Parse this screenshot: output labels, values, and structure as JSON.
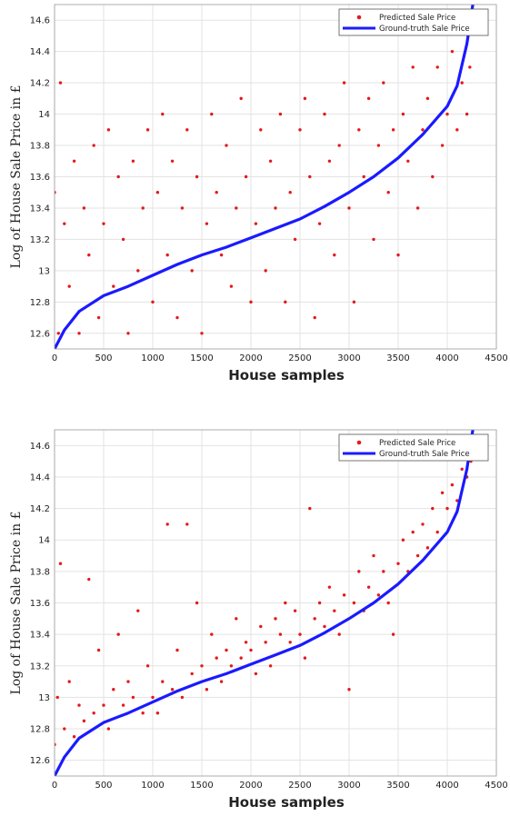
{
  "chart_data": [
    {
      "type": "scatter",
      "xlabel": "House samples",
      "ylabel": "Log of House Sale Price in £",
      "xlim": [
        0,
        4500
      ],
      "ylim": [
        12.5,
        14.7
      ],
      "xticks": [
        0,
        500,
        1000,
        1500,
        2000,
        2500,
        3000,
        3500,
        4000,
        4500
      ],
      "yticks": [
        12.6,
        12.8,
        13,
        13.2,
        13.4,
        13.6,
        13.8,
        14,
        14.2,
        14.4,
        14.6
      ],
      "grid": true,
      "legend_position": "top-right",
      "series": [
        {
          "name": "Predicted Sale Price",
          "kind": "scatter",
          "color": "#e31a1c",
          "points": [
            [
              0,
              13.5
            ],
            [
              40,
              12.6
            ],
            [
              60,
              14.2
            ],
            [
              100,
              13.3
            ],
            [
              150,
              12.9
            ],
            [
              200,
              13.7
            ],
            [
              250,
              12.6
            ],
            [
              300,
              13.4
            ],
            [
              350,
              13.1
            ],
            [
              400,
              13.8
            ],
            [
              450,
              12.7
            ],
            [
              500,
              13.3
            ],
            [
              550,
              13.9
            ],
            [
              600,
              12.9
            ],
            [
              650,
              13.6
            ],
            [
              700,
              13.2
            ],
            [
              750,
              12.6
            ],
            [
              800,
              13.7
            ],
            [
              850,
              13.0
            ],
            [
              900,
              13.4
            ],
            [
              950,
              13.9
            ],
            [
              1000,
              12.8
            ],
            [
              1050,
              13.5
            ],
            [
              1100,
              14.0
            ],
            [
              1150,
              13.1
            ],
            [
              1200,
              13.7
            ],
            [
              1250,
              12.7
            ],
            [
              1300,
              13.4
            ],
            [
              1350,
              13.9
            ],
            [
              1400,
              13.0
            ],
            [
              1450,
              13.6
            ],
            [
              1500,
              12.6
            ],
            [
              1550,
              13.3
            ],
            [
              1600,
              14.0
            ],
            [
              1650,
              13.5
            ],
            [
              1700,
              13.1
            ],
            [
              1750,
              13.8
            ],
            [
              1800,
              12.9
            ],
            [
              1850,
              13.4
            ],
            [
              1900,
              14.1
            ],
            [
              1950,
              13.6
            ],
            [
              2000,
              12.8
            ],
            [
              2050,
              13.3
            ],
            [
              2100,
              13.9
            ],
            [
              2150,
              13.0
            ],
            [
              2200,
              13.7
            ],
            [
              2250,
              13.4
            ],
            [
              2300,
              14.0
            ],
            [
              2350,
              12.8
            ],
            [
              2400,
              13.5
            ],
            [
              2450,
              13.2
            ],
            [
              2500,
              13.9
            ],
            [
              2550,
              14.1
            ],
            [
              2600,
              13.6
            ],
            [
              2650,
              12.7
            ],
            [
              2700,
              13.3
            ],
            [
              2750,
              14.0
            ],
            [
              2800,
              13.7
            ],
            [
              2850,
              13.1
            ],
            [
              2900,
              13.8
            ],
            [
              2950,
              14.2
            ],
            [
              3000,
              13.4
            ],
            [
              3050,
              12.8
            ],
            [
              3100,
              13.9
            ],
            [
              3150,
              13.6
            ],
            [
              3200,
              14.1
            ],
            [
              3250,
              13.2
            ],
            [
              3300,
              13.8
            ],
            [
              3350,
              14.2
            ],
            [
              3400,
              13.5
            ],
            [
              3450,
              13.9
            ],
            [
              3500,
              13.1
            ],
            [
              3550,
              14.0
            ],
            [
              3600,
              13.7
            ],
            [
              3650,
              14.3
            ],
            [
              3700,
              13.4
            ],
            [
              3750,
              13.9
            ],
            [
              3800,
              14.1
            ],
            [
              3850,
              13.6
            ],
            [
              3900,
              14.3
            ],
            [
              3950,
              13.8
            ],
            [
              4000,
              14.0
            ],
            [
              4050,
              14.4
            ],
            [
              4100,
              13.9
            ],
            [
              4150,
              14.2
            ],
            [
              4200,
              14.0
            ],
            [
              4230,
              14.3
            ]
          ]
        },
        {
          "name": "Ground-truth Sale Price",
          "kind": "line",
          "color": "#1a1aff",
          "points": [
            [
              0,
              12.5
            ],
            [
              100,
              12.62
            ],
            [
              250,
              12.74
            ],
            [
              500,
              12.84
            ],
            [
              750,
              12.9
            ],
            [
              1000,
              12.97
            ],
            [
              1250,
              13.04
            ],
            [
              1500,
              13.1
            ],
            [
              1750,
              13.15
            ],
            [
              2000,
              13.21
            ],
            [
              2250,
              13.27
            ],
            [
              2500,
              13.33
            ],
            [
              2750,
              13.41
            ],
            [
              3000,
              13.5
            ],
            [
              3250,
              13.6
            ],
            [
              3500,
              13.72
            ],
            [
              3750,
              13.87
            ],
            [
              4000,
              14.05
            ],
            [
              4100,
              14.18
            ],
            [
              4200,
              14.45
            ],
            [
              4260,
              14.7
            ]
          ]
        }
      ]
    },
    {
      "type": "scatter",
      "xlabel": "House samples",
      "ylabel": "Log of House Sale Price in £",
      "xlim": [
        0,
        4500
      ],
      "ylim": [
        12.5,
        14.7
      ],
      "xticks": [
        0,
        500,
        1000,
        1500,
        2000,
        2500,
        3000,
        3500,
        4000,
        4500
      ],
      "yticks": [
        12.6,
        12.8,
        13,
        13.2,
        13.4,
        13.6,
        13.8,
        14,
        14.2,
        14.4,
        14.6
      ],
      "grid": true,
      "legend_position": "top-right",
      "series": [
        {
          "name": "Predicted Sale Price",
          "kind": "scatter",
          "color": "#e31a1c",
          "points": [
            [
              0,
              12.7
            ],
            [
              30,
              13.0
            ],
            [
              60,
              13.85
            ],
            [
              100,
              12.8
            ],
            [
              150,
              13.1
            ],
            [
              200,
              12.75
            ],
            [
              250,
              12.95
            ],
            [
              300,
              12.85
            ],
            [
              350,
              13.75
            ],
            [
              400,
              12.9
            ],
            [
              450,
              13.3
            ],
            [
              500,
              12.95
            ],
            [
              550,
              12.8
            ],
            [
              600,
              13.05
            ],
            [
              650,
              13.4
            ],
            [
              700,
              12.95
            ],
            [
              750,
              13.1
            ],
            [
              800,
              13.0
            ],
            [
              850,
              13.55
            ],
            [
              900,
              12.9
            ],
            [
              950,
              13.2
            ],
            [
              1000,
              13.0
            ],
            [
              1050,
              12.9
            ],
            [
              1100,
              13.1
            ],
            [
              1150,
              14.1
            ],
            [
              1200,
              13.05
            ],
            [
              1250,
              13.3
            ],
            [
              1300,
              13.0
            ],
            [
              1350,
              14.1
            ],
            [
              1400,
              13.15
            ],
            [
              1450,
              13.6
            ],
            [
              1500,
              13.2
            ],
            [
              1550,
              13.05
            ],
            [
              1600,
              13.4
            ],
            [
              1650,
              13.25
            ],
            [
              1700,
              13.1
            ],
            [
              1750,
              13.3
            ],
            [
              1800,
              13.2
            ],
            [
              1850,
              13.5
            ],
            [
              1900,
              13.25
            ],
            [
              1950,
              13.35
            ],
            [
              2000,
              13.3
            ],
            [
              2050,
              13.15
            ],
            [
              2100,
              13.45
            ],
            [
              2150,
              13.35
            ],
            [
              2200,
              13.2
            ],
            [
              2250,
              13.5
            ],
            [
              2300,
              13.4
            ],
            [
              2350,
              13.6
            ],
            [
              2400,
              13.35
            ],
            [
              2450,
              13.55
            ],
            [
              2500,
              13.4
            ],
            [
              2550,
              13.25
            ],
            [
              2600,
              14.2
            ],
            [
              2650,
              13.5
            ],
            [
              2700,
              13.6
            ],
            [
              2750,
              13.45
            ],
            [
              2800,
              13.7
            ],
            [
              2850,
              13.55
            ],
            [
              2900,
              13.4
            ],
            [
              2950,
              13.65
            ],
            [
              3000,
              13.05
            ],
            [
              3050,
              13.6
            ],
            [
              3100,
              13.8
            ],
            [
              3150,
              13.55
            ],
            [
              3200,
              13.7
            ],
            [
              3250,
              13.9
            ],
            [
              3300,
              13.65
            ],
            [
              3350,
              13.8
            ],
            [
              3400,
              13.6
            ],
            [
              3450,
              13.4
            ],
            [
              3500,
              13.85
            ],
            [
              3550,
              14.0
            ],
            [
              3600,
              13.8
            ],
            [
              3650,
              14.05
            ],
            [
              3700,
              13.9
            ],
            [
              3750,
              14.1
            ],
            [
              3800,
              13.95
            ],
            [
              3850,
              14.2
            ],
            [
              3900,
              14.05
            ],
            [
              3950,
              14.3
            ],
            [
              4000,
              14.2
            ],
            [
              4050,
              14.35
            ],
            [
              4100,
              14.25
            ],
            [
              4150,
              14.45
            ],
            [
              4200,
              14.4
            ],
            [
              4240,
              14.5
            ]
          ]
        },
        {
          "name": "Ground-truth Sale Price",
          "kind": "line",
          "color": "#1a1aff",
          "points": [
            [
              0,
              12.5
            ],
            [
              100,
              12.62
            ],
            [
              250,
              12.74
            ],
            [
              500,
              12.84
            ],
            [
              750,
              12.9
            ],
            [
              1000,
              12.97
            ],
            [
              1250,
              13.04
            ],
            [
              1500,
              13.1
            ],
            [
              1750,
              13.15
            ],
            [
              2000,
              13.21
            ],
            [
              2250,
              13.27
            ],
            [
              2500,
              13.33
            ],
            [
              2750,
              13.41
            ],
            [
              3000,
              13.5
            ],
            [
              3250,
              13.6
            ],
            [
              3500,
              13.72
            ],
            [
              3750,
              13.87
            ],
            [
              4000,
              14.05
            ],
            [
              4100,
              14.18
            ],
            [
              4200,
              14.45
            ],
            [
              4260,
              14.7
            ]
          ]
        }
      ]
    }
  ]
}
